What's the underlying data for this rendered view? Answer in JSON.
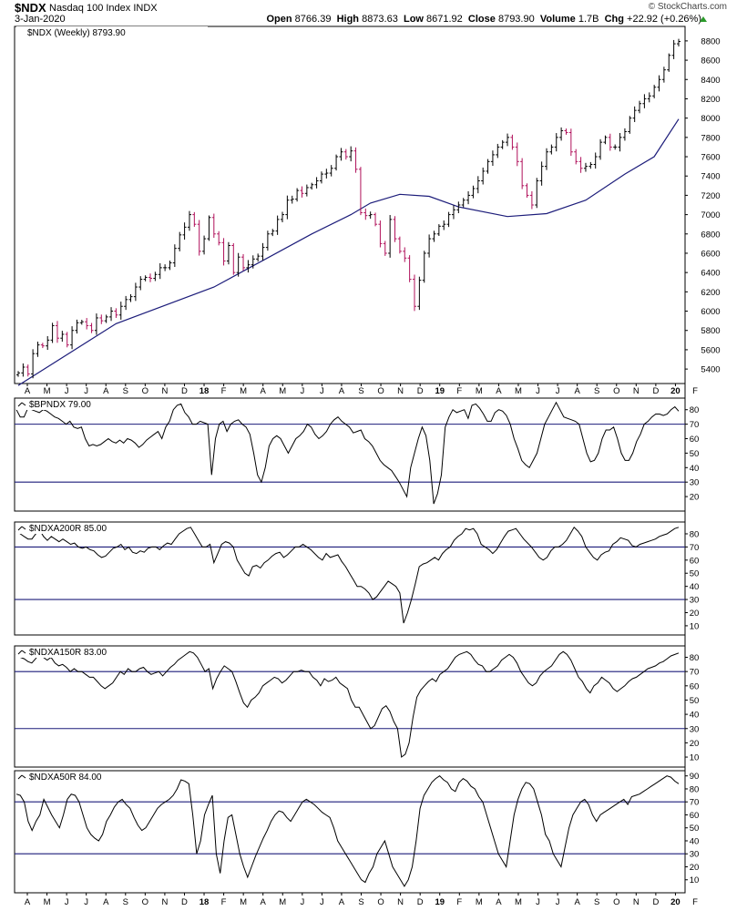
{
  "header": {
    "symbol": "$NDX",
    "name": "Nasdaq 100 Index  INDX",
    "date": "3-Jan-2020",
    "brand": "© StockCharts.com",
    "open_label": "Open",
    "open": "8766.39",
    "high_label": "High",
    "high": "8873.63",
    "low_label": "Low",
    "low": "8671.92",
    "close_label": "Close",
    "close": "8793.90",
    "volume_label": "Volume",
    "volume": "1.7B",
    "chg_label": "Chg",
    "chg": "+22.92 (+0.26%)"
  },
  "colors": {
    "up": "#000000",
    "down": "#b0105a",
    "ma": "#1c1c7a",
    "line": "#000000",
    "ref": "#1c1c7a"
  },
  "x_axis": {
    "months": [
      "A",
      "M",
      "J",
      "J",
      "A",
      "S",
      "O",
      "N",
      "D",
      "18",
      "F",
      "M",
      "A",
      "M",
      "J",
      "J",
      "A",
      "S",
      "O",
      "N",
      "D",
      "19",
      "F",
      "M",
      "A",
      "M",
      "J",
      "J",
      "A",
      "S",
      "O",
      "N",
      "D",
      "20",
      "F"
    ],
    "bold": [
      "18",
      "19",
      "20"
    ]
  },
  "chart_data": [
    {
      "type": "candlestick",
      "title": "$NDX (Weekly) 8793.90",
      "ylim": [
        5250,
        8950
      ],
      "yticks": [
        5400,
        5600,
        5800,
        6000,
        6200,
        6400,
        6600,
        6800,
        7000,
        7200,
        7400,
        7600,
        7800,
        8000,
        8200,
        8400,
        8600,
        8800
      ],
      "closes": [
        5360,
        5420,
        5350,
        5560,
        5650,
        5640,
        5700,
        5850,
        5720,
        5760,
        5650,
        5800,
        5880,
        5890,
        5850,
        5800,
        5930,
        5900,
        5940,
        6000,
        5960,
        6050,
        6120,
        6150,
        6250,
        6330,
        6350,
        6340,
        6380,
        6450,
        6450,
        6500,
        6650,
        6790,
        6870,
        7000,
        6900,
        6620,
        6750,
        6970,
        6800,
        6710,
        6520,
        6680,
        6400,
        6560,
        6450,
        6480,
        6540,
        6570,
        6660,
        6800,
        6830,
        6950,
        7000,
        7150,
        7160,
        7250,
        7220,
        7280,
        7310,
        7350,
        7420,
        7430,
        7480,
        7600,
        7650,
        7600,
        7660,
        7470,
        7020,
        6990,
        7000,
        6900,
        6700,
        6600,
        6950,
        6750,
        6620,
        6550,
        6330,
        6050,
        6320,
        6600,
        6750,
        6800,
        6880,
        6900,
        7000,
        7050,
        7100,
        7150,
        7200,
        7270,
        7350,
        7450,
        7550,
        7620,
        7700,
        7750,
        7800,
        7700,
        7550,
        7300,
        7200,
        7100,
        7350,
        7500,
        7650,
        7700,
        7800,
        7870,
        7850,
        7650,
        7550,
        7480,
        7500,
        7520,
        7600,
        7750,
        7800,
        7700,
        7700,
        7800,
        7860,
        8000,
        8080,
        8150,
        8200,
        8230,
        8320,
        8400,
        8500,
        8650,
        8770,
        8794
      ],
      "ma": {
        "label": "40-week MA",
        "points": [
          [
            0,
            5230
          ],
          [
            20,
            5870
          ],
          [
            40,
            6250
          ],
          [
            60,
            6800
          ],
          [
            68,
            7000
          ],
          [
            72,
            7120
          ],
          [
            78,
            7210
          ],
          [
            84,
            7190
          ],
          [
            90,
            7080
          ],
          [
            100,
            6980
          ],
          [
            108,
            7010
          ],
          [
            116,
            7150
          ],
          [
            124,
            7420
          ],
          [
            130,
            7600
          ],
          [
            135,
            7990
          ]
        ]
      }
    },
    {
      "type": "line",
      "title": "$BPNDX 79.00",
      "ylim": [
        10,
        88
      ],
      "yticks": [
        20,
        30,
        40,
        50,
        60,
        70,
        80
      ],
      "ref_lines": [
        70,
        30
      ],
      "values": [
        80,
        75,
        75,
        81,
        80,
        79,
        78,
        80,
        79,
        77,
        75,
        74,
        72,
        70,
        72,
        68,
        67,
        68,
        60,
        55,
        56,
        55,
        56,
        58,
        60,
        58,
        57,
        59,
        57,
        60,
        59,
        57,
        54,
        56,
        59,
        61,
        63,
        65,
        60,
        68,
        72,
        80,
        83,
        84,
        78,
        75,
        70,
        70,
        72,
        71,
        70,
        35,
        60,
        70,
        72,
        65,
        70,
        72,
        73,
        70,
        68,
        63,
        50,
        35,
        30,
        40,
        55,
        60,
        62,
        60,
        55,
        50,
        55,
        60,
        62,
        65,
        70,
        68,
        63,
        60,
        62,
        65,
        70,
        73,
        75,
        72,
        70,
        68,
        64,
        65,
        66,
        60,
        58,
        55,
        50,
        45,
        42,
        40,
        38,
        34,
        30,
        25,
        20,
        40,
        50,
        60,
        68,
        62,
        45,
        15,
        22,
        35,
        68,
        75,
        80,
        78,
        79,
        80,
        74,
        83,
        84,
        81,
        77,
        72,
        72,
        78,
        80,
        79,
        76,
        70,
        60,
        53,
        45,
        42,
        40,
        45,
        50,
        60,
        70,
        75,
        80,
        85,
        80,
        75,
        74,
        73,
        72,
        70,
        60,
        50,
        44,
        45,
        50,
        60,
        66,
        66,
        68,
        60,
        50,
        45,
        45,
        50,
        58,
        63,
        70,
        72,
        75,
        77,
        77,
        76,
        77,
        80,
        82,
        79
      ]
    },
    {
      "type": "line",
      "title": "$NDXA200R 85.00",
      "ylim": [
        3,
        89
      ],
      "yticks": [
        10,
        20,
        30,
        40,
        50,
        60,
        70,
        80
      ],
      "ref_lines": [
        70,
        30
      ],
      "values": [
        82,
        80,
        78,
        76,
        76,
        80,
        83,
        78,
        75,
        78,
        76,
        74,
        76,
        74,
        72,
        73,
        70,
        69,
        70,
        68,
        67,
        64,
        62,
        63,
        66,
        69,
        70,
        72,
        68,
        70,
        66,
        65,
        67,
        66,
        69,
        70,
        70,
        68,
        71,
        73,
        72,
        76,
        80,
        82,
        84,
        85,
        80,
        75,
        70,
        70,
        72,
        58,
        65,
        72,
        74,
        73,
        70,
        60,
        55,
        50,
        48,
        55,
        56,
        54,
        58,
        60,
        63,
        65,
        66,
        62,
        64,
        67,
        70,
        70,
        72,
        70,
        68,
        65,
        62,
        60,
        65,
        62,
        63,
        64,
        59,
        55,
        50,
        45,
        40,
        40,
        38,
        35,
        30,
        32,
        36,
        40,
        44,
        42,
        40,
        35,
        12,
        20,
        30,
        42,
        55,
        57,
        58,
        60,
        62,
        60,
        65,
        68,
        70,
        75,
        78,
        80,
        84,
        83,
        84,
        80,
        72,
        70,
        68,
        65,
        68,
        73,
        78,
        82,
        83,
        84,
        80,
        76,
        73,
        70,
        66,
        62,
        60,
        62,
        67,
        70,
        70,
        72,
        75,
        80,
        85,
        82,
        78,
        70,
        66,
        62,
        60,
        64,
        66,
        67,
        72,
        74,
        77,
        76,
        75,
        71,
        70,
        72,
        73,
        74,
        75,
        76,
        78,
        79,
        80,
        82,
        84,
        85
      ]
    },
    {
      "type": "line",
      "title": "$NDXA150R 83.00",
      "ylim": [
        3,
        88
      ],
      "yticks": [
        10,
        20,
        30,
        40,
        50,
        60,
        70,
        80
      ],
      "ref_lines": [
        70,
        30
      ],
      "values": [
        82,
        80,
        79,
        77,
        76,
        79,
        83,
        80,
        78,
        80,
        76,
        74,
        75,
        73,
        70,
        72,
        70,
        70,
        68,
        66,
        66,
        63,
        60,
        58,
        60,
        62,
        66,
        70,
        68,
        72,
        70,
        70,
        72,
        73,
        70,
        68,
        69,
        70,
        67,
        70,
        73,
        75,
        78,
        80,
        82,
        84,
        83,
        80,
        75,
        70,
        72,
        58,
        65,
        70,
        74,
        72,
        70,
        63,
        55,
        48,
        45,
        50,
        52,
        55,
        60,
        62,
        64,
        66,
        65,
        62,
        64,
        67,
        70,
        70,
        71,
        70,
        70,
        66,
        64,
        60,
        65,
        63,
        64,
        66,
        62,
        60,
        58,
        50,
        45,
        45,
        40,
        35,
        30,
        32,
        38,
        44,
        46,
        42,
        35,
        30,
        10,
        12,
        20,
        38,
        52,
        57,
        60,
        63,
        65,
        63,
        68,
        70,
        72,
        76,
        80,
        82,
        83,
        84,
        82,
        78,
        75,
        74,
        70,
        70,
        72,
        74,
        78,
        80,
        82,
        80,
        76,
        70,
        66,
        62,
        60,
        62,
        67,
        70,
        72,
        74,
        78,
        82,
        84,
        82,
        78,
        72,
        66,
        63,
        58,
        55,
        60,
        62,
        66,
        64,
        62,
        58,
        56,
        58,
        60,
        63,
        65,
        66,
        68,
        70,
        72,
        73,
        74,
        76,
        77,
        79,
        81,
        82,
        83
      ]
    },
    {
      "type": "line",
      "title": "$NDXA50R 84.00",
      "ylim": [
        0,
        94
      ],
      "yticks": [
        10,
        20,
        30,
        40,
        50,
        60,
        70,
        80,
        90
      ],
      "ref_lines": [
        70,
        30
      ],
      "values": [
        76,
        75,
        70,
        55,
        48,
        55,
        60,
        72,
        66,
        60,
        55,
        50,
        60,
        72,
        76,
        75,
        70,
        60,
        50,
        45,
        42,
        40,
        45,
        55,
        60,
        66,
        70,
        72,
        68,
        65,
        58,
        52,
        48,
        50,
        55,
        60,
        65,
        68,
        70,
        72,
        75,
        80,
        87,
        86,
        84,
        60,
        30,
        40,
        60,
        68,
        75,
        30,
        15,
        40,
        58,
        60,
        45,
        30,
        20,
        12,
        20,
        28,
        35,
        42,
        48,
        55,
        60,
        63,
        62,
        58,
        55,
        60,
        65,
        70,
        72,
        70,
        68,
        65,
        62,
        60,
        58,
        50,
        40,
        35,
        30,
        25,
        20,
        15,
        10,
        8,
        15,
        20,
        30,
        35,
        40,
        30,
        20,
        15,
        10,
        5,
        10,
        20,
        40,
        65,
        75,
        80,
        85,
        88,
        90,
        87,
        85,
        80,
        78,
        85,
        88,
        86,
        82,
        80,
        74,
        70,
        60,
        50,
        40,
        30,
        25,
        20,
        40,
        60,
        72,
        80,
        85,
        84,
        80,
        70,
        60,
        45,
        40,
        30,
        25,
        20,
        35,
        50,
        60,
        65,
        70,
        72,
        68,
        60,
        55,
        60,
        62,
        64,
        66,
        68,
        70,
        72,
        68,
        74,
        75,
        76,
        78,
        80,
        82,
        84,
        86,
        88,
        90,
        89,
        86,
        84
      ]
    }
  ]
}
